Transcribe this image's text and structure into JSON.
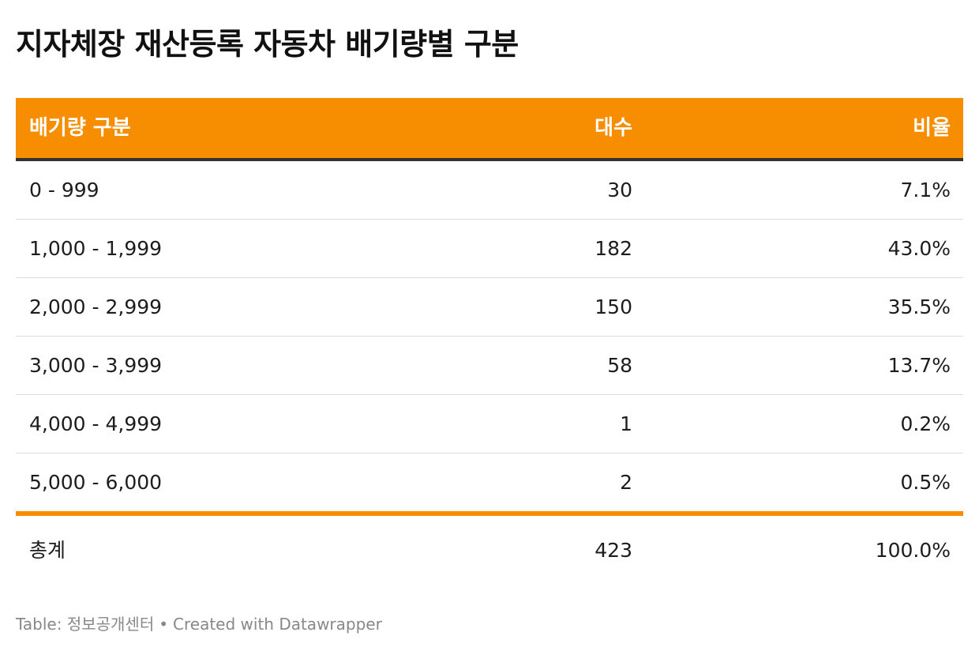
{
  "title": "지자체장 재산등록 자동차 배기량별 구분",
  "columns": {
    "category": "배기량 구분",
    "count": "대수",
    "ratio": "비율"
  },
  "rows": [
    {
      "category": "0 - 999",
      "count": "30",
      "ratio": "7.1%"
    },
    {
      "category": "1,000 - 1,999",
      "count": "182",
      "ratio": "43.0%"
    },
    {
      "category": "2,000 - 2,999",
      "count": "150",
      "ratio": "35.5%"
    },
    {
      "category": "3,000 - 3,999",
      "count": "58",
      "ratio": "13.7%"
    },
    {
      "category": "4,000 - 4,999",
      "count": "1",
      "ratio": "0.2%"
    },
    {
      "category": "5,000 - 6,000",
      "count": "2",
      "ratio": "0.5%"
    }
  ],
  "total": {
    "category": "총계",
    "count": "423",
    "ratio": "100.0%"
  },
  "footer": {
    "source": "Table: 정보공개센터",
    "separator": "•",
    "credit": "Created with Datawrapper"
  },
  "colors": {
    "header_background": "#f78d00",
    "header_text": "#ffffff",
    "header_rule": "#333333",
    "total_rule": "#f78d00"
  },
  "chart_data": {
    "type": "table",
    "title": "지자체장 재산등록 자동차 배기량별 구분",
    "columns": [
      "배기량 구분",
      "대수",
      "비율"
    ],
    "rows": [
      [
        "0 - 999",
        30,
        7.1
      ],
      [
        "1,000 - 1,999",
        182,
        43.0
      ],
      [
        "2,000 - 2,999",
        150,
        35.5
      ],
      [
        "3,000 - 3,999",
        58,
        13.7
      ],
      [
        "4,000 - 4,999",
        1,
        0.2
      ],
      [
        "5,000 - 6,000",
        2,
        0.5
      ]
    ],
    "total": [
      "총계",
      423,
      100.0
    ]
  }
}
